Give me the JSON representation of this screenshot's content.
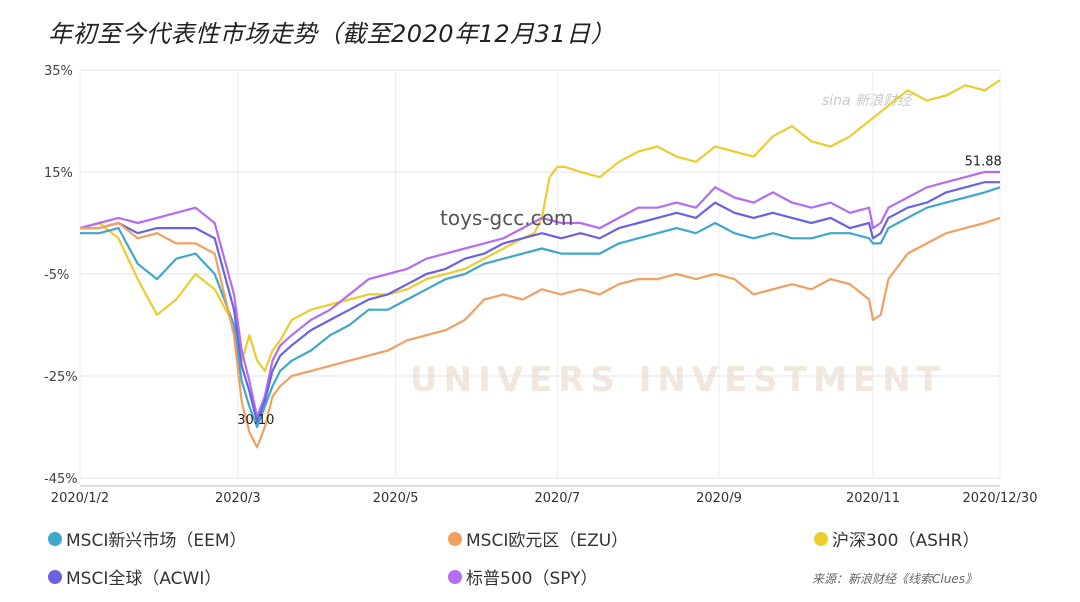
{
  "title": "年初至今代表性市场走势（截至2020年12月31日）",
  "watermark_url": "toys-gcc.com",
  "sina_watermark": "sina 新浪财经",
  "bg_watermark": "UNIVERS INVESTMENT",
  "source": "来源：新浪财经《线索Clues》",
  "colors": {
    "EEM": "#3fa7cc",
    "EZU": "#f0a060",
    "ASHR": "#eccd2f",
    "ACWI": "#6a63e0",
    "SPY": "#b46cf2"
  },
  "chart_data": {
    "type": "line",
    "ylim": [
      -45,
      35
    ],
    "y_ticks": [
      "35%",
      "15%",
      "-5%",
      "-25%",
      "-45%"
    ],
    "y_tick_values": [
      35,
      15,
      -5,
      -25,
      -45
    ],
    "x_ticks": [
      "2020/1/2",
      "2020/3",
      "2020/5",
      "2020/7",
      "2020/9",
      "2020/11",
      "2020/12/30"
    ],
    "x_tick_values": [
      0,
      41,
      82,
      124,
      166,
      206,
      239
    ],
    "annotations": [
      {
        "text": "30.10",
        "x": 45,
        "y": -30.1
      },
      {
        "text": "51.88",
        "x": 235,
        "y": 15.5
      }
    ],
    "series": [
      {
        "key": "ASHR",
        "name": "沪深300（ASHR）",
        "x": [
          0,
          5,
          10,
          15,
          20,
          25,
          30,
          35,
          40,
          42,
          44,
          46,
          48,
          50,
          52,
          55,
          60,
          65,
          70,
          75,
          80,
          85,
          90,
          95,
          100,
          105,
          110,
          115,
          118,
          120,
          122,
          124,
          126,
          130,
          135,
          140,
          145,
          150,
          155,
          160,
          165,
          170,
          175,
          180,
          185,
          190,
          195,
          200,
          205,
          210,
          215,
          220,
          225,
          230,
          235,
          239
        ],
        "y": [
          4,
          5,
          2,
          -6,
          -13,
          -10,
          -5,
          -8,
          -15,
          -22,
          -17,
          -22,
          -24,
          -20,
          -18,
          -14,
          -12,
          -11,
          -10,
          -9,
          -9,
          -8,
          -6,
          -5,
          -4,
          -2,
          0,
          2,
          3,
          6,
          14,
          16,
          16,
          15,
          14,
          17,
          19,
          20,
          18,
          17,
          20,
          19,
          18,
          22,
          24,
          21,
          20,
          22,
          25,
          28,
          31,
          29,
          30,
          32,
          31,
          33
        ]
      },
      {
        "key": "SPY",
        "name": "标普500（SPY）",
        "x": [
          0,
          5,
          10,
          15,
          20,
          25,
          30,
          35,
          40,
          42,
          44,
          46,
          48,
          50,
          52,
          55,
          60,
          65,
          70,
          75,
          80,
          85,
          90,
          95,
          100,
          105,
          110,
          115,
          120,
          125,
          130,
          135,
          140,
          145,
          150,
          155,
          160,
          165,
          170,
          175,
          180,
          185,
          190,
          195,
          200,
          205,
          206,
          208,
          210,
          215,
          220,
          225,
          230,
          235,
          239
        ],
        "y": [
          4,
          5,
          6,
          5,
          6,
          7,
          8,
          5,
          -9,
          -20,
          -26,
          -33,
          -29,
          -22,
          -19,
          -17,
          -14,
          -12,
          -9,
          -6,
          -5,
          -4,
          -2,
          -1,
          0,
          1,
          2,
          4,
          6,
          5,
          5,
          4,
          6,
          8,
          8,
          9,
          8,
          12,
          10,
          9,
          11,
          9,
          8,
          9,
          7,
          8,
          4,
          5,
          8,
          10,
          12,
          13,
          14,
          15,
          15
        ]
      },
      {
        "key": "ACWI",
        "name": "MSCI全球（ACWI）",
        "x": [
          0,
          5,
          10,
          15,
          20,
          25,
          30,
          35,
          40,
          42,
          44,
          46,
          48,
          50,
          52,
          55,
          60,
          65,
          70,
          75,
          80,
          85,
          90,
          95,
          100,
          105,
          110,
          115,
          120,
          125,
          130,
          135,
          140,
          145,
          150,
          155,
          160,
          165,
          170,
          175,
          180,
          185,
          190,
          195,
          200,
          205,
          206,
          208,
          210,
          215,
          220,
          225,
          230,
          235,
          239
        ],
        "y": [
          4,
          4,
          5,
          3,
          4,
          4,
          4,
          2,
          -12,
          -23,
          -28,
          -34,
          -30,
          -24,
          -21,
          -19,
          -16,
          -14,
          -12,
          -10,
          -9,
          -7,
          -5,
          -4,
          -2,
          -1,
          1,
          2,
          3,
          2,
          3,
          2,
          4,
          5,
          6,
          7,
          6,
          9,
          7,
          6,
          7,
          6,
          5,
          6,
          4,
          5,
          2,
          3,
          6,
          8,
          9,
          11,
          12,
          13,
          13
        ]
      },
      {
        "key": "EEM",
        "name": "MSCI新兴市场（EEM）",
        "x": [
          0,
          5,
          10,
          15,
          20,
          25,
          30,
          35,
          40,
          42,
          44,
          46,
          48,
          50,
          52,
          55,
          60,
          65,
          70,
          75,
          80,
          85,
          90,
          95,
          100,
          105,
          110,
          115,
          120,
          125,
          130,
          135,
          140,
          145,
          150,
          155,
          160,
          165,
          170,
          175,
          180,
          185,
          190,
          195,
          200,
          205,
          206,
          208,
          210,
          215,
          220,
          225,
          230,
          235,
          239
        ],
        "y": [
          3,
          3,
          4,
          -3,
          -6,
          -2,
          -1,
          -5,
          -15,
          -26,
          -31,
          -35,
          -31,
          -27,
          -24,
          -22,
          -20,
          -17,
          -15,
          -12,
          -12,
          -10,
          -8,
          -6,
          -5,
          -3,
          -2,
          -1,
          0,
          -1,
          -1,
          -1,
          1,
          2,
          3,
          4,
          3,
          5,
          3,
          2,
          3,
          2,
          2,
          3,
          3,
          2,
          1,
          1,
          4,
          6,
          8,
          9,
          10,
          11,
          12
        ]
      },
      {
        "key": "EZU",
        "name": "MSCI欧元区（EZU）",
        "x": [
          0,
          5,
          10,
          15,
          20,
          25,
          30,
          35,
          40,
          42,
          44,
          46,
          48,
          50,
          52,
          55,
          60,
          65,
          70,
          75,
          80,
          85,
          90,
          95,
          100,
          105,
          110,
          115,
          120,
          125,
          130,
          135,
          140,
          145,
          150,
          155,
          160,
          165,
          170,
          175,
          180,
          185,
          190,
          195,
          200,
          205,
          206,
          208,
          210,
          215,
          220,
          225,
          230,
          235,
          239
        ],
        "y": [
          4,
          4,
          5,
          2,
          3,
          1,
          1,
          -1,
          -17,
          -30,
          -36,
          -39,
          -35,
          -29,
          -27,
          -25,
          -24,
          -23,
          -22,
          -21,
          -20,
          -18,
          -17,
          -16,
          -14,
          -10,
          -9,
          -10,
          -8,
          -9,
          -8,
          -9,
          -7,
          -6,
          -6,
          -5,
          -6,
          -5,
          -6,
          -9,
          -8,
          -7,
          -8,
          -6,
          -7,
          -10,
          -14,
          -13,
          -6,
          -1,
          1,
          3,
          4,
          5,
          6
        ]
      }
    ]
  },
  "legend": [
    {
      "key": "EEM",
      "label": "MSCI新兴市场（EEM）"
    },
    {
      "key": "EZU",
      "label": "MSCI欧元区（EZU）"
    },
    {
      "key": "ASHR",
      "label": "沪深300（ASHR）"
    },
    {
      "key": "ACWI",
      "label": "MSCI全球（ACWI）"
    },
    {
      "key": "SPY",
      "label": "标普500（SPY）"
    }
  ]
}
